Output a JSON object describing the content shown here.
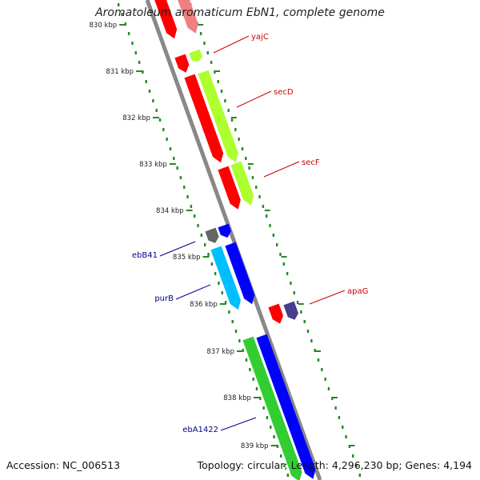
{
  "title": "Aromatoleum aromaticum EbN1, complete genome",
  "footer": {
    "accession": "Accession: NC_006513",
    "stats": "Topology: circular; Length: 4,296,230 bp; Genes: 4,194"
  },
  "ticks": [
    "830 kbp",
    "831 kbp",
    "832 kbp",
    "833 kbp",
    "834 kbp",
    "835 kbp",
    "836 kbp",
    "837 kbp",
    "838 kbp",
    "839 kbp"
  ],
  "gene_labels": {
    "yajC": "yajC",
    "secD": "secD",
    "secF": "secF",
    "apaG": "apaG",
    "ebB41": "ebB41",
    "purB": "purB",
    "ebA1422": "ebA1422"
  },
  "colors": {
    "red": "#ff0000",
    "pink": "#f08080",
    "lime": "#adff2f",
    "blue": "#0000ff",
    "cyan": "#00bfff",
    "green": "#32cd32",
    "gray": "#666666",
    "purple": "#483d8b",
    "backbone": "#888888",
    "tick_green": "#228b22",
    "label_red": "#cc0000",
    "label_blue": "#00008b"
  }
}
